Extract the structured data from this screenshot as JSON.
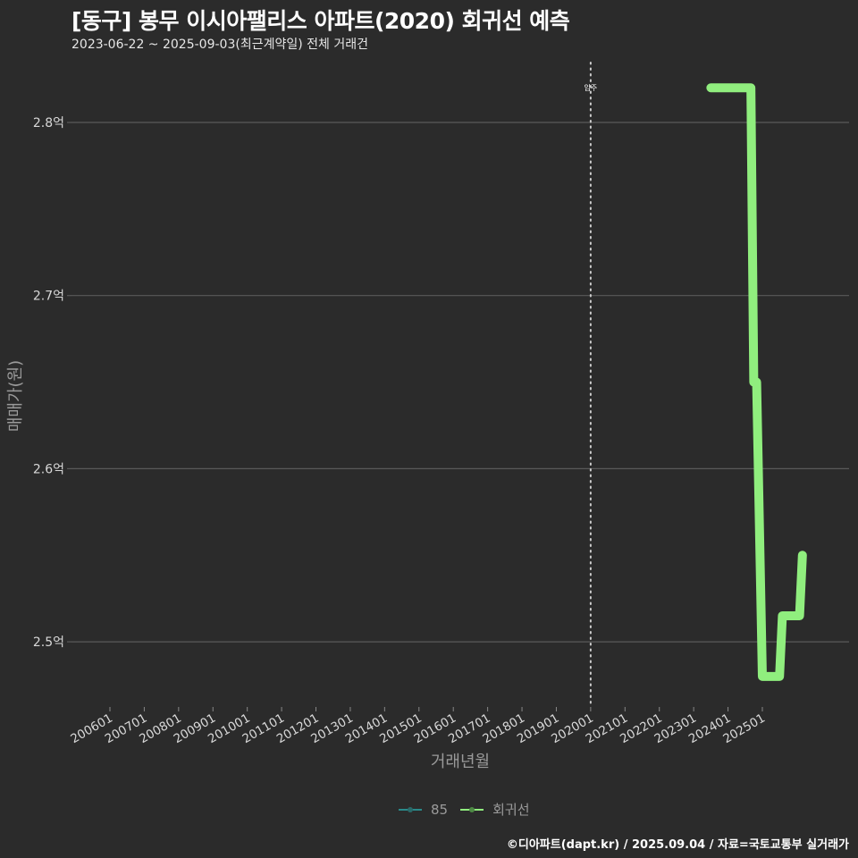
{
  "header": {
    "title": "[동구] 봉무 이시아팰리스 아파트(2020) 회귀선 예측",
    "subtitle": "2023-06-22 ~ 2025-09-03(최근계약일) 전체 거래건"
  },
  "caption": "©디아파트(dapt.kr) / 2025.09.04 / 자료=국토교통부 실거래가",
  "colors": {
    "background": "#2b2b2b",
    "grid": "#5a5a5a",
    "series_85": "#2a8a8a",
    "series_regression": "#90ee7e",
    "vline": "#cccccc"
  },
  "chart_data": {
    "type": "line",
    "title": "[동구] 봉무 이시아팰리스 아파트(2020) 회귀선 예측",
    "subtitle": "2023-06-22 ~ 2025-09-03(최근계약일) 전체 거래건",
    "xlabel": "거래년월",
    "ylabel": "매매가(원)",
    "x_ticks": [
      "200601",
      "200701",
      "200801",
      "200901",
      "201001",
      "201101",
      "201201",
      "201301",
      "201401",
      "201501",
      "201601",
      "201701",
      "201801",
      "201901",
      "202001",
      "202101",
      "202201",
      "202301",
      "202401",
      "202501"
    ],
    "y_ticks": [
      "2.5억",
      "2.6억",
      "2.7억",
      "2.8억"
    ],
    "y_tick_values": [
      250000000,
      260000000,
      270000000,
      280000000
    ],
    "ylim": [
      246500000,
      283700000
    ],
    "grid": "horizontal",
    "legend_position": "bottom",
    "annotations": [
      {
        "type": "vline",
        "x": "202001",
        "label": "입주",
        "style": "dotted"
      }
    ],
    "series": [
      {
        "name": "85",
        "points": []
      },
      {
        "name": "회귀선",
        "step": true,
        "points": [
          {
            "x": "2023-07",
            "y": 282000000
          },
          {
            "x": "2024-09",
            "y": 282000000
          },
          {
            "x": "2024-10",
            "y": 265000000
          },
          {
            "x": "2024-11",
            "y": 265000000
          },
          {
            "x": "2025-01",
            "y": 248000000
          },
          {
            "x": "2025-07",
            "y": 248000000
          },
          {
            "x": "2025-08",
            "y": 251500000
          },
          {
            "x": "2026-02",
            "y": 251500000
          },
          {
            "x": "2026-03",
            "y": 255000000
          }
        ]
      }
    ]
  },
  "legend": {
    "items": [
      {
        "label": "85"
      },
      {
        "label": "회귀선"
      }
    ]
  },
  "annotation_label": "입주"
}
